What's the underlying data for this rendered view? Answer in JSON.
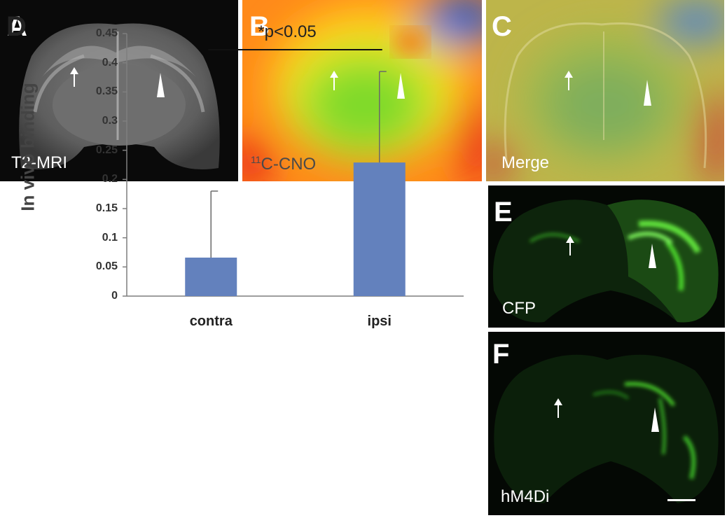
{
  "panels": {
    "a": {
      "letter": "A",
      "caption": "T2-MRI"
    },
    "b": {
      "letter": "B",
      "caption_sup": "11",
      "caption_main": "C-CNO"
    },
    "c": {
      "letter": "C",
      "caption": "Merge"
    },
    "d": {
      "letter": "D"
    },
    "e": {
      "letter": "E",
      "caption": "CFP"
    },
    "f": {
      "letter": "F",
      "caption": "hM4Di"
    }
  },
  "chart_data": {
    "type": "bar",
    "categories": [
      "contra",
      "ipsi"
    ],
    "values": [
      0.066,
      0.229
    ],
    "error_bars_upper": [
      0.114,
      0.156
    ],
    "ylabel": "In vivo binding",
    "xlabel": "",
    "ylim": [
      0,
      0.45
    ],
    "yticks": [
      "0",
      "0.05",
      "0.1",
      "0.15",
      "0.2",
      "0.25",
      "0.3",
      "0.35",
      "0.4",
      "0.45"
    ],
    "significance": "*p<0.05",
    "bar_color": "#6381bd",
    "grid": false,
    "legend": "none"
  },
  "colors": {
    "mri_background": "#0a0a0a",
    "fluorescence_green": "#4bd62a",
    "pet_hot": "#e6201a",
    "pet_cold": "#1f4fd0"
  }
}
